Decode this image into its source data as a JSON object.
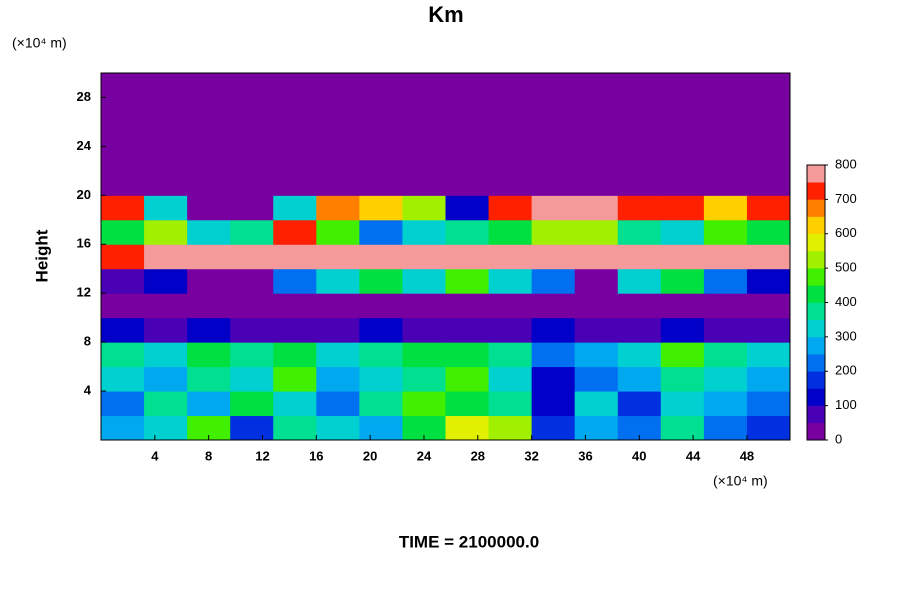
{
  "chart_data": {
    "type": "heatmap",
    "title": "Km",
    "y_label": "Height",
    "y_unit": "(×10⁴ m)",
    "x_unit": "(×10⁴ m)",
    "footer": "TIME = 2100000.0",
    "x": [
      1.6,
      4.8,
      8,
      11.2,
      14.4,
      17.6,
      20.8,
      24,
      27.2,
      30.4,
      33.6,
      36.8,
      40,
      43.2,
      46.4,
      49.6
    ],
    "y": [
      1,
      3,
      5,
      7,
      9,
      11,
      13,
      15,
      17,
      19,
      21,
      23,
      25,
      27,
      29
    ],
    "z": [
      [
        250,
        300,
        450,
        150,
        350,
        300,
        250,
        400,
        550,
        500,
        150,
        250,
        200,
        350,
        200,
        150
      ],
      [
        200,
        350,
        250,
        400,
        300,
        200,
        350,
        450,
        400,
        350,
        100,
        300,
        150,
        300,
        250,
        200
      ],
      [
        300,
        250,
        350,
        300,
        450,
        250,
        300,
        350,
        450,
        300,
        100,
        200,
        250,
        350,
        300,
        250
      ],
      [
        350,
        300,
        400,
        350,
        400,
        300,
        350,
        400,
        400,
        350,
        200,
        250,
        300,
        450,
        350,
        300
      ],
      [
        100,
        50,
        100,
        50,
        50,
        50,
        100,
        50,
        50,
        50,
        100,
        50,
        50,
        100,
        50,
        50
      ],
      [
        0,
        0,
        0,
        0,
        0,
        0,
        0,
        0,
        0,
        0,
        0,
        0,
        0,
        0,
        0,
        0
      ],
      [
        50,
        100,
        0,
        0,
        200,
        300,
        400,
        300,
        450,
        300,
        200,
        0,
        300,
        400,
        200,
        100
      ],
      [
        700,
        750,
        800,
        800,
        800,
        800,
        800,
        800,
        800,
        800,
        800,
        800,
        800,
        800,
        750,
        800
      ],
      [
        400,
        500,
        300,
        350,
        700,
        450,
        200,
        300,
        350,
        400,
        500,
        500,
        350,
        300,
        450,
        400
      ],
      [
        700,
        300,
        0,
        0,
        300,
        650,
        600,
        500,
        100,
        700,
        800,
        750,
        700,
        700,
        600,
        700
      ],
      [
        0,
        0,
        0,
        0,
        0,
        0,
        0,
        0,
        0,
        0,
        0,
        0,
        0,
        0,
        0,
        0
      ],
      [
        0,
        0,
        0,
        0,
        0,
        0,
        0,
        0,
        0,
        0,
        0,
        0,
        0,
        0,
        0,
        0
      ],
      [
        0,
        0,
        0,
        0,
        0,
        0,
        0,
        0,
        0,
        0,
        0,
        0,
        0,
        0,
        0,
        0
      ],
      [
        0,
        0,
        0,
        0,
        0,
        0,
        0,
        0,
        0,
        0,
        0,
        0,
        0,
        0,
        0,
        0
      ],
      [
        0,
        0,
        0,
        0,
        0,
        0,
        0,
        0,
        0,
        0,
        0,
        0,
        0,
        0,
        0,
        0
      ]
    ],
    "xlim": [
      0,
      51.2
    ],
    "ylim": [
      0,
      30
    ],
    "xticks": [
      4,
      8,
      12,
      16,
      20,
      24,
      28,
      32,
      36,
      40,
      44,
      48
    ],
    "yticks": [
      4,
      8,
      12,
      16,
      20,
      24,
      28
    ],
    "clim": [
      0,
      800
    ],
    "cticks": [
      0,
      100,
      200,
      300,
      400,
      500,
      600,
      700,
      800
    ],
    "colors": [
      "#7800a0",
      "#4a00b4",
      "#0000c8",
      "#0030e0",
      "#0070f0",
      "#00a8f0",
      "#00d0d0",
      "#00e090",
      "#00e040",
      "#40f000",
      "#a0f000",
      "#e0f000",
      "#ffd000",
      "#ff8000",
      "#ff2000",
      "#f49a9a"
    ]
  }
}
